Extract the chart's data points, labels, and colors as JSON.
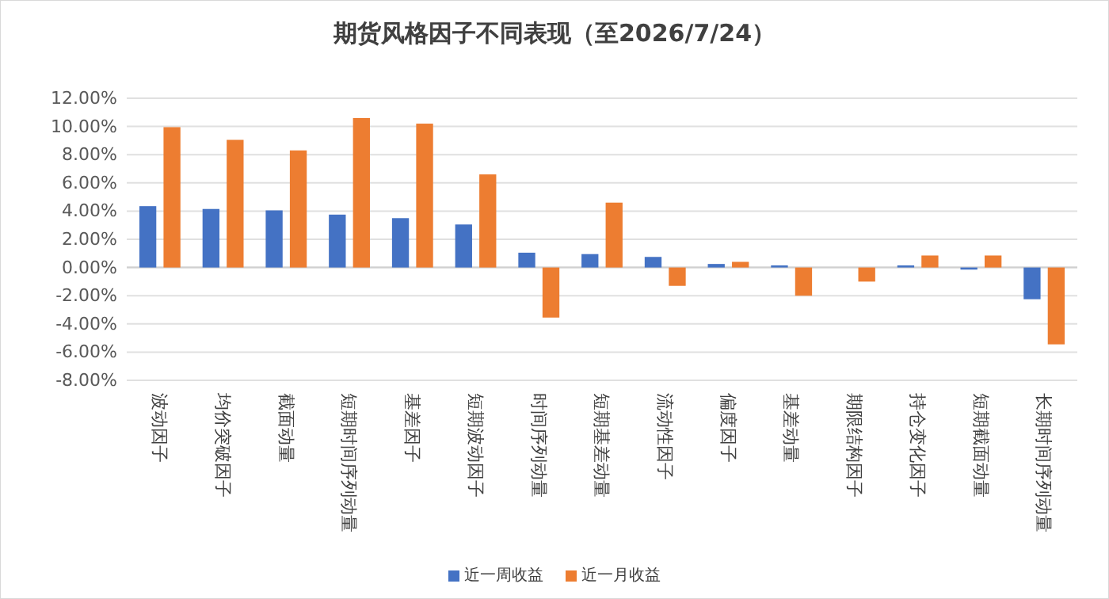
{
  "chart_data": {
    "type": "bar",
    "title": "期货风格因子不同表现（至2026/7/24）",
    "categories": [
      "波动因子",
      "均价突破因子",
      "截面动量",
      "短期时间序列动量",
      "基差因子",
      "短期波动因子",
      "时间序列动量",
      "短期基差动量",
      "流动性因子",
      "偏度因子",
      "基差动量",
      "期限结构因子",
      "持仓变化因子",
      "短期截面动量",
      "长期时间序列动量"
    ],
    "series": [
      {
        "name": "近一周收益",
        "color": "#4472c4",
        "values": [
          4.35,
          4.15,
          4.05,
          3.75,
          3.5,
          3.05,
          1.05,
          0.95,
          0.75,
          0.25,
          0.15,
          0,
          0.15,
          -0.15,
          -2.25
        ]
      },
      {
        "name": "近一月收益",
        "color": "#ed7d31",
        "values": [
          9.95,
          9.05,
          8.3,
          10.6,
          10.2,
          6.6,
          -3.55,
          4.6,
          -1.3,
          0.4,
          -2.0,
          -1.0,
          0.85,
          0.85,
          -5.45
        ]
      }
    ],
    "ylim": [
      -8,
      12
    ],
    "yticks": [
      {
        "value": -8,
        "label": "-8.00%"
      },
      {
        "value": -6,
        "label": "-6.00%"
      },
      {
        "value": -4,
        "label": "-4.00%"
      },
      {
        "value": -2,
        "label": "-2.00%"
      },
      {
        "value": 0,
        "label": "0.00%"
      },
      {
        "value": 2,
        "label": "2.00%"
      },
      {
        "value": 4,
        "label": "4.00%"
      },
      {
        "value": 6,
        "label": "6.00%"
      },
      {
        "value": 8,
        "label": "8.00%"
      },
      {
        "value": 10,
        "label": "10.00%"
      },
      {
        "value": 12,
        "label": "12.00%"
      }
    ],
    "grid": "y",
    "legend": "bottom"
  }
}
